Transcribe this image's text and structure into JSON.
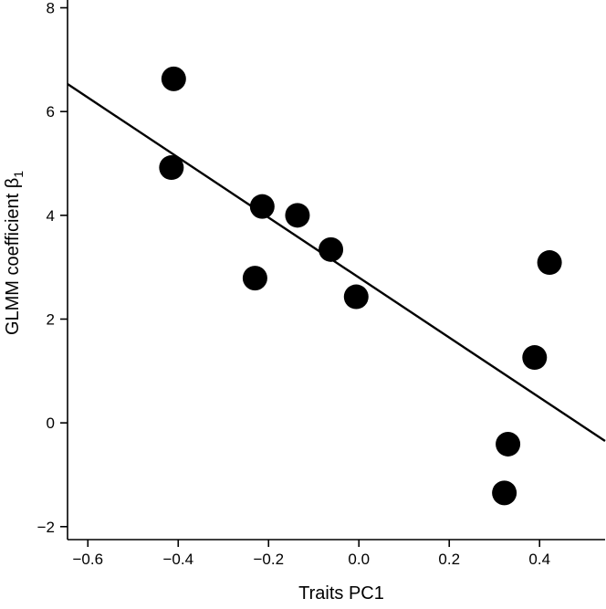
{
  "chart_data": {
    "type": "scatter",
    "title": "",
    "xlabel": "Traits PC1",
    "ylabel": "GLMM coefficient β",
    "ylabel_subscript": "1",
    "xlim": [
      -0.645,
      0.545
    ],
    "ylim": [
      -2.25,
      8.15
    ],
    "xticks": [
      -0.6,
      -0.4,
      -0.2,
      0.0,
      0.2,
      0.4
    ],
    "xtick_labels": [
      "−0.6",
      "−0.4",
      "−0.2",
      "0.0",
      "0.2",
      "0.4"
    ],
    "yticks": [
      -2,
      0,
      2,
      4,
      6,
      8
    ],
    "ytick_labels": [
      "−2",
      "0",
      "2",
      "4",
      "6",
      "8"
    ],
    "grid": false,
    "points": [
      {
        "x": -0.41,
        "y": 6.63
      },
      {
        "x": -0.415,
        "y": 4.92
      },
      {
        "x": -0.214,
        "y": 4.17
      },
      {
        "x": -0.136,
        "y": 4.0
      },
      {
        "x": -0.062,
        "y": 3.34
      },
      {
        "x": -0.23,
        "y": 2.79
      },
      {
        "x": -0.006,
        "y": 2.43
      },
      {
        "x": 0.422,
        "y": 3.09
      },
      {
        "x": 0.389,
        "y": 1.26
      },
      {
        "x": 0.33,
        "y": -0.41
      },
      {
        "x": 0.322,
        "y": -1.35
      }
    ],
    "fit_line": {
      "x": [
        -0.645,
        0.545
      ],
      "y": [
        6.53,
        -0.35
      ]
    },
    "colors": {
      "points": "#000000",
      "line": "#000000",
      "axes": "#000000"
    }
  }
}
